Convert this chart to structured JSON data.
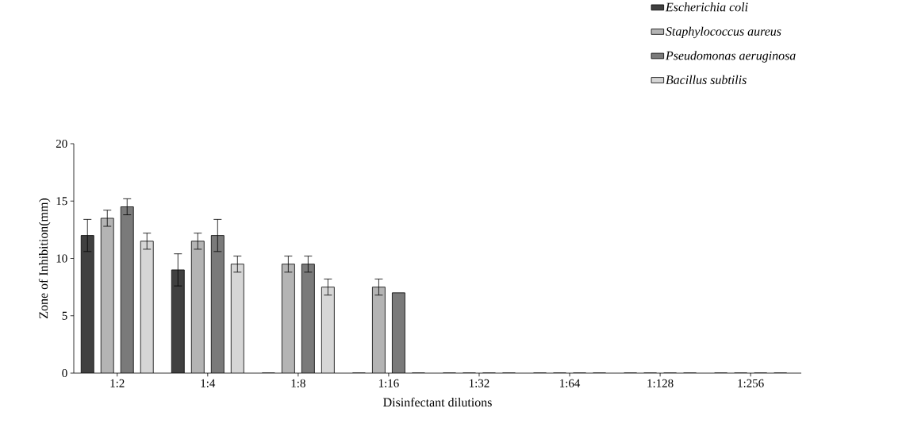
{
  "chart_data": {
    "type": "bar",
    "xlabel": "Disinfectant dilutions",
    "ylabel": "Zone of Inhibition(mm)",
    "categories": [
      "1:2",
      "1:4",
      "1:8",
      "1:16",
      "1:32",
      "1:64",
      "1:128",
      "1:256"
    ],
    "series": [
      {
        "name": "Escherichia coli",
        "color": "#404040",
        "values": [
          12,
          9,
          0,
          0,
          0,
          0,
          0,
          0
        ],
        "errors": [
          1.4,
          1.4,
          null,
          null,
          null,
          null,
          null,
          null
        ]
      },
      {
        "name": "Staphylococcus aureus",
        "color": "#b4b4b4",
        "values": [
          13.5,
          11.5,
          9.5,
          7.5,
          0,
          0,
          0,
          0
        ],
        "errors": [
          0.7,
          0.7,
          0.7,
          0.7,
          null,
          null,
          null,
          null
        ]
      },
      {
        "name": "Pseudomonas aeruginosa",
        "color": "#7a7a7a",
        "values": [
          14.5,
          12,
          9.5,
          7,
          0,
          0,
          0,
          0
        ],
        "errors": [
          0.7,
          1.4,
          0.7,
          null,
          null,
          null,
          null,
          null
        ]
      },
      {
        "name": "Bacillus subtilis",
        "color": "#d6d6d6",
        "values": [
          11.5,
          9.5,
          7.5,
          0,
          0,
          0,
          0,
          0
        ],
        "errors": [
          0.7,
          0.7,
          0.7,
          null,
          null,
          null,
          null,
          null
        ]
      }
    ],
    "ylim": [
      0,
      20
    ],
    "yticks": [
      0,
      5,
      10,
      15,
      20
    ],
    "grid": false,
    "legend": "top right"
  }
}
